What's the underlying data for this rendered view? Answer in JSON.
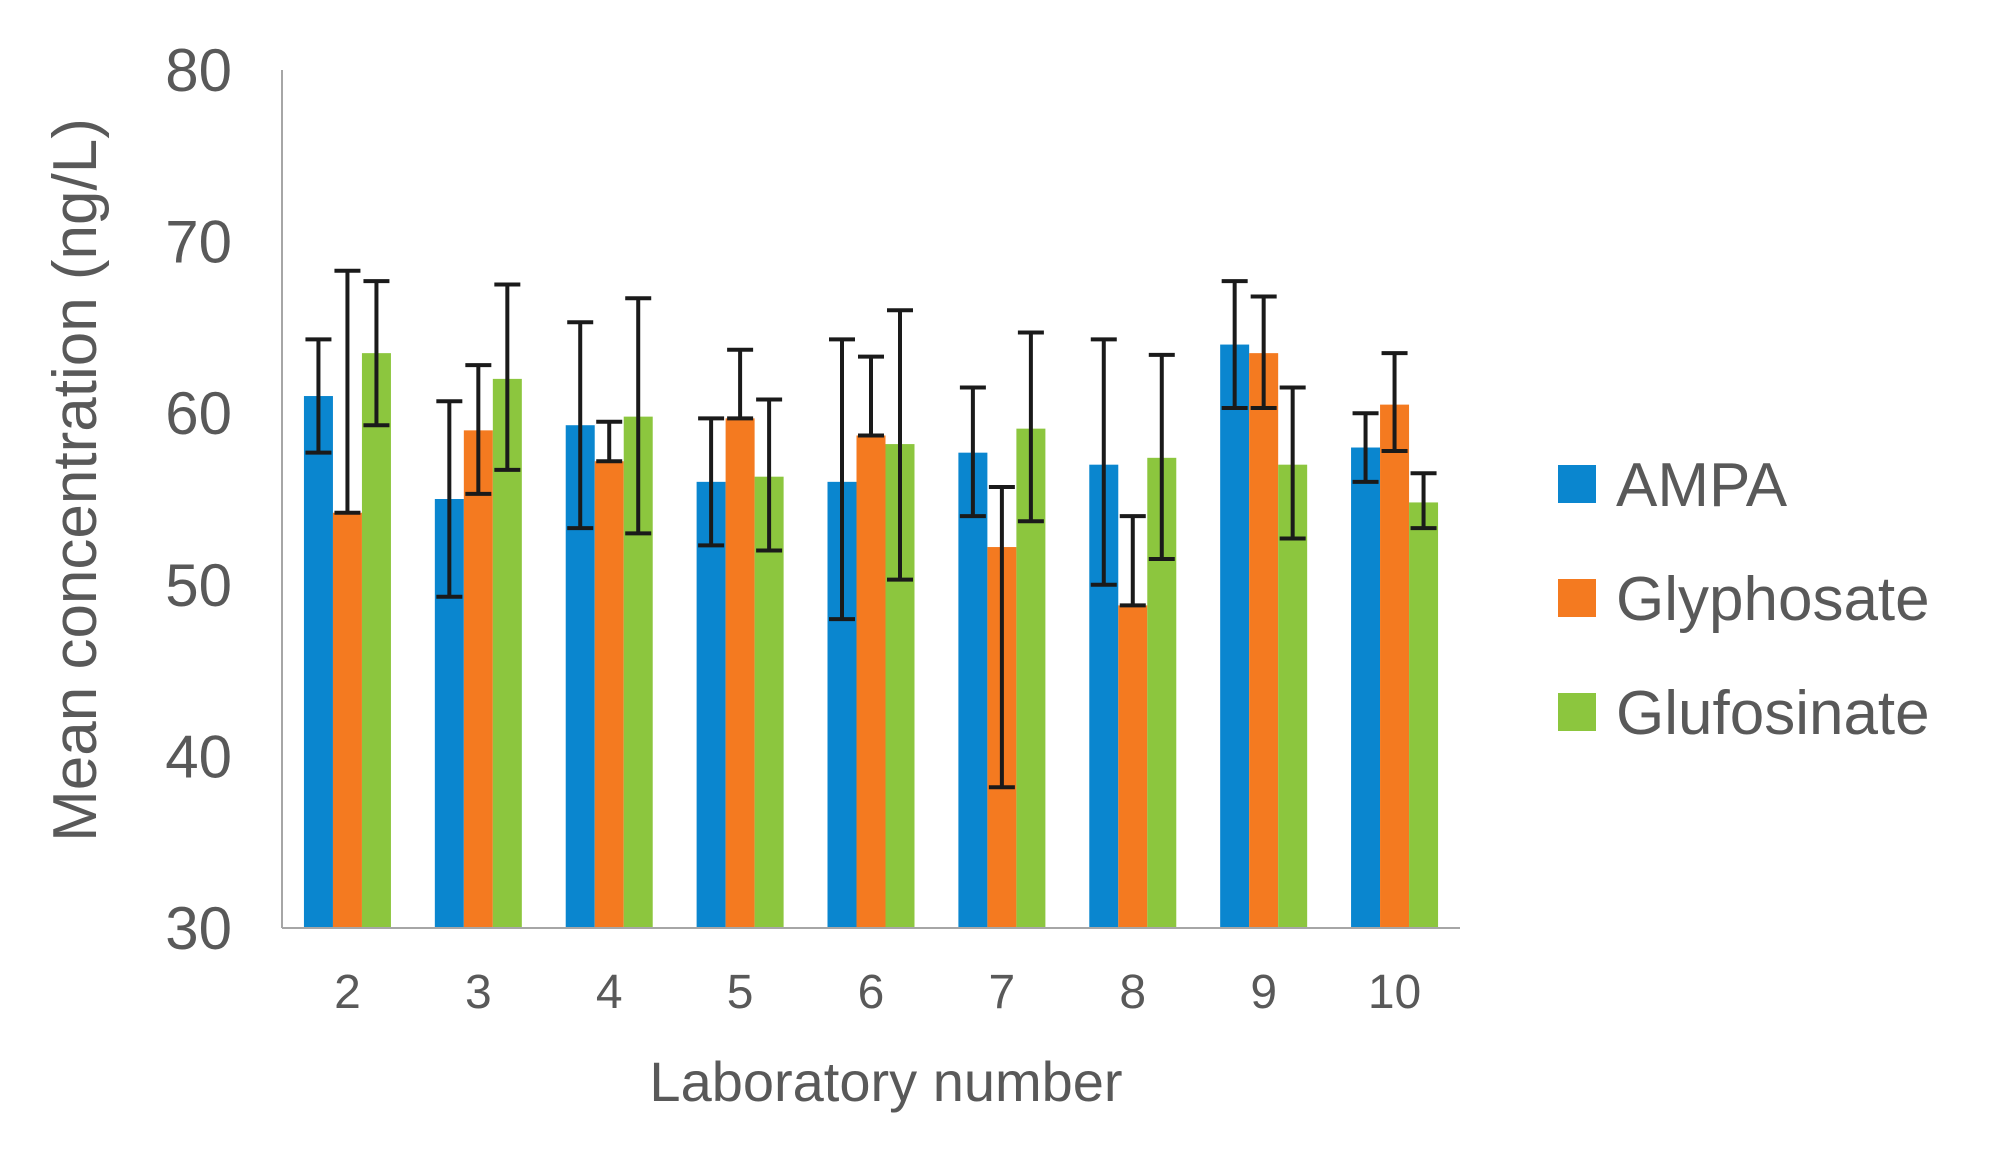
{
  "chart_data": {
    "type": "bar",
    "xlabel": "Laboratory number",
    "ylabel": "Mean concentration (ng/L)",
    "ylim": [
      30,
      80
    ],
    "yticks": [
      30,
      40,
      50,
      60,
      70,
      80
    ],
    "grid": false,
    "legend_position": "right",
    "error_bars": true,
    "categories": [
      "2",
      "3",
      "4",
      "5",
      "6",
      "7",
      "8",
      "9",
      "10"
    ],
    "series": [
      {
        "name": "AMPA",
        "color": "#0a86cf",
        "values": [
          61.0,
          55.0,
          59.3,
          56.0,
          56.0,
          57.7,
          57.0,
          64.0,
          58.0
        ],
        "error_low": [
          57.7,
          49.3,
          53.3,
          52.3,
          48.0,
          54.0,
          50.0,
          60.3,
          56.0
        ],
        "error_high": [
          64.3,
          60.7,
          65.3,
          59.7,
          64.3,
          61.5,
          64.3,
          67.7,
          60.0
        ]
      },
      {
        "name": "Glyphosate",
        "color": "#f47a20",
        "values": [
          54.2,
          59.0,
          57.2,
          59.7,
          58.7,
          52.2,
          48.8,
          63.5,
          60.5
        ],
        "error_low": [
          54.2,
          55.3,
          57.2,
          59.7,
          58.7,
          38.2,
          48.8,
          60.3,
          57.8
        ],
        "error_high": [
          68.3,
          62.8,
          59.5,
          63.7,
          63.3,
          55.7,
          54.0,
          66.8,
          63.5
        ]
      },
      {
        "name": "Glufosinate",
        "color": "#8cc63e",
        "values": [
          63.5,
          62.0,
          59.8,
          56.3,
          58.2,
          59.1,
          57.4,
          57.0,
          54.8
        ],
        "error_low": [
          59.3,
          56.7,
          53.0,
          52.0,
          50.3,
          53.7,
          51.5,
          52.7,
          53.3
        ],
        "error_high": [
          67.7,
          67.5,
          66.7,
          60.8,
          66.0,
          64.7,
          63.4,
          61.5,
          56.5
        ]
      }
    ]
  }
}
